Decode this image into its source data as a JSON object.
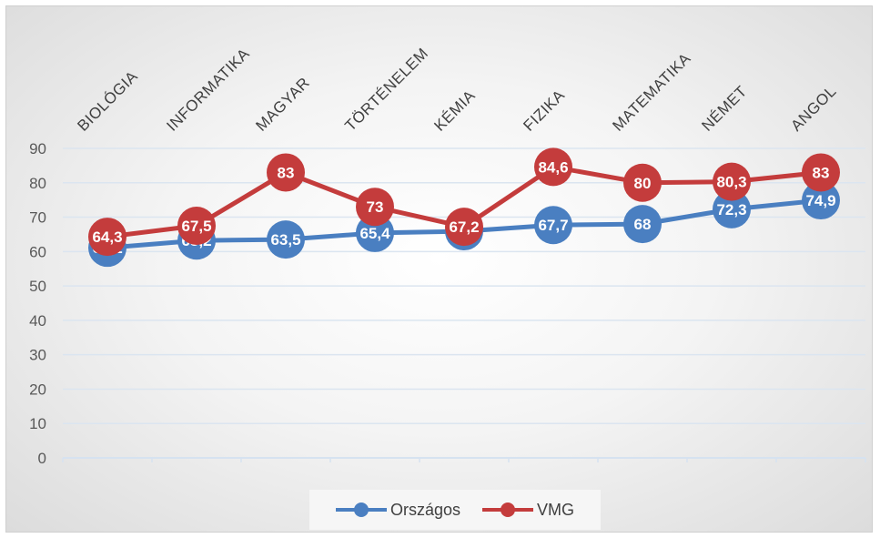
{
  "chart_data": {
    "type": "line",
    "categories": [
      "BIOLÓGIA",
      "INFORMATIKA",
      "MAGYAR",
      "TÖRTÉNELEM",
      "KÉMIA",
      "FIZIKA",
      "MATEMATIKA",
      "NÉMET",
      "ANGOL"
    ],
    "series": [
      {
        "name": "Országos",
        "color": "#4a7fc1",
        "values": [
          61.1,
          63.2,
          63.5,
          65.4,
          65.9,
          67.7,
          68,
          72.3,
          74.9
        ],
        "labels": [
          "61,1",
          "63,2",
          "63,5",
          "65,4",
          "65,9",
          "67,7",
          "68",
          "72,3",
          "74,9"
        ]
      },
      {
        "name": "VMG",
        "color": "#c43c3c",
        "values": [
          64.3,
          67.5,
          83,
          73,
          67.2,
          84.6,
          80,
          80.3,
          83
        ],
        "labels": [
          "64,3",
          "67,5",
          "83",
          "73",
          "67,2",
          "84,6",
          "80",
          "80,3",
          "83"
        ]
      }
    ],
    "y_ticks": [
      "0",
      "10",
      "20",
      "30",
      "40",
      "50",
      "60",
      "70",
      "80",
      "90"
    ],
    "ylim": [
      0,
      90
    ],
    "grid": true,
    "legend": "bottom"
  }
}
